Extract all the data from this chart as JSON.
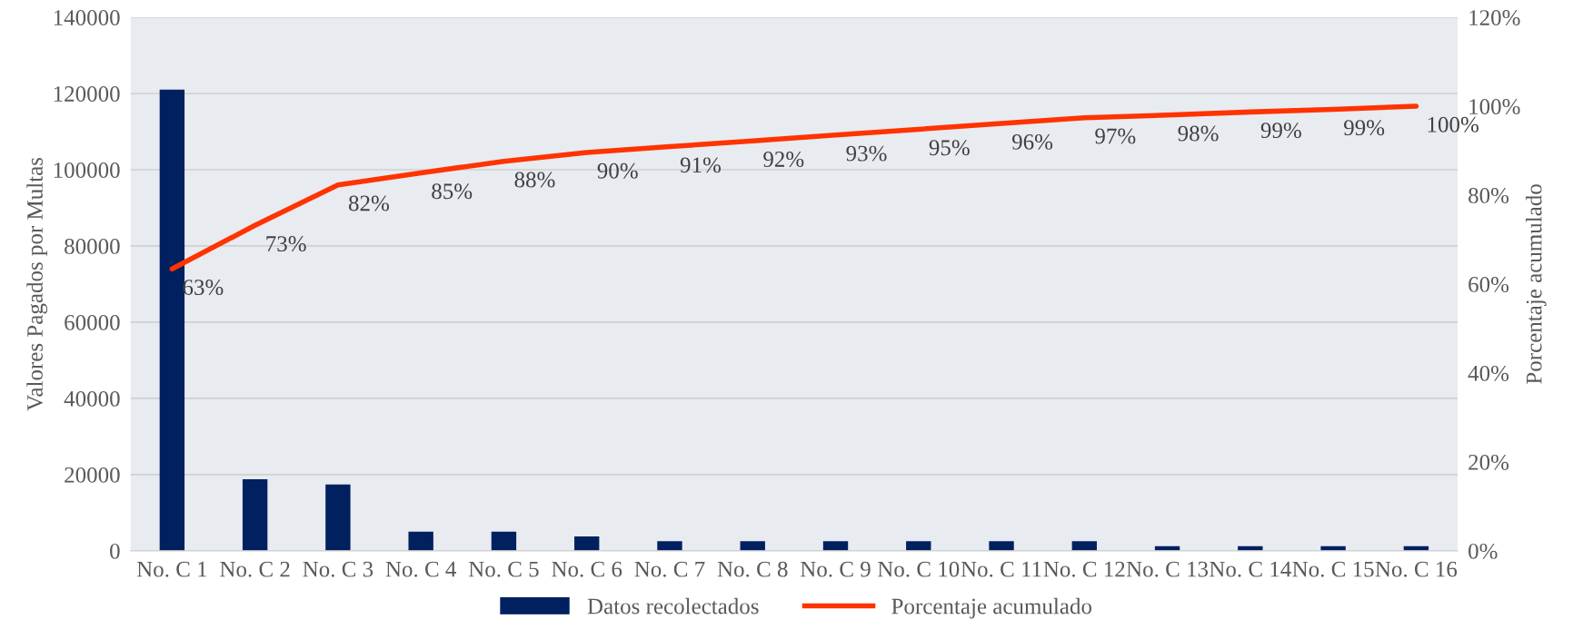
{
  "chart_data": {
    "type": "bar",
    "ylabel": "Valores Pagados por Multas",
    "y2label": "Porcentaje acumulado",
    "categories": [
      "No. C 1",
      "No. C 2",
      "No. C 3",
      "No. C 4",
      "No. C 5",
      "No. C 6",
      "No. C 7",
      "No. C 8",
      "No. C 9",
      "No. C 10",
      "No. C 11",
      "No. C 12",
      "No. C 13",
      "No. C 14",
      "No. C 15",
      "No. C 16"
    ],
    "series": [
      {
        "name": "Datos recolectados",
        "color": "#002060",
        "values": [
          121000,
          18800,
          17400,
          5000,
          5000,
          3800,
          2500,
          2500,
          2500,
          2500,
          2500,
          2500,
          1200,
          1200,
          1200,
          1200
        ]
      },
      {
        "name": "Porcentaje acumulado",
        "type": "line",
        "axis": "y2",
        "color": "#ff3300",
        "values": [
          63.4,
          73.2,
          82.3,
          85.0,
          87.6,
          89.6,
          90.9,
          92.2,
          93.5,
          94.8,
          96.1,
          97.4,
          98.0,
          98.7,
          99.3,
          100.0
        ],
        "value_labels": [
          "63%",
          "73%",
          "82%",
          "85%",
          "88%",
          "90%",
          "91%",
          "92%",
          "93%",
          "95%",
          "96%",
          "97%",
          "98%",
          "99%",
          "99%",
          "100%"
        ]
      }
    ],
    "ylim": [
      0,
      140000
    ],
    "yticks": [
      0,
      20000,
      40000,
      60000,
      80000,
      100000,
      120000,
      140000
    ],
    "y2lim": [
      0,
      120
    ],
    "y2ticks": [
      {
        "value": 0,
        "label": "0%"
      },
      {
        "value": 20,
        "label": "20%"
      },
      {
        "value": 40,
        "label": "40%"
      },
      {
        "value": 60,
        "label": "60%"
      },
      {
        "value": 80,
        "label": "80%"
      },
      {
        "value": 100,
        "label": "100%"
      },
      {
        "value": 120,
        "label": "120%"
      }
    ],
    "grid": "y",
    "legend": "bottom"
  }
}
